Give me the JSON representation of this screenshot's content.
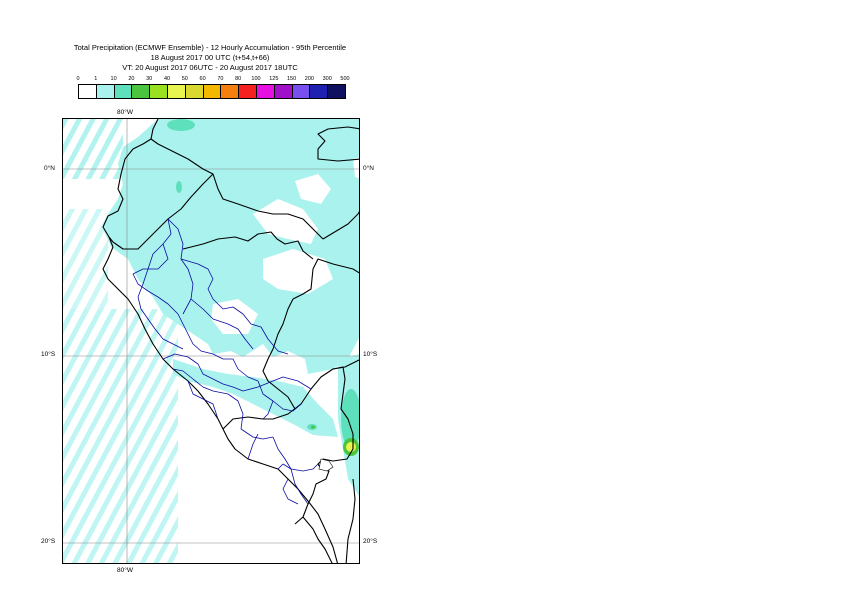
{
  "title": {
    "line1": "Total Precipitation (ECMWF Ensemble) - 12 Hourly Accumulation - 95th Percentile",
    "line2": "18 August 2017 00 UTC (t+54,t+66)",
    "line3": "VT: 20 August 2017 06UTC - 20 August 2017 18UTC"
  },
  "legend": {
    "labels": [
      "0",
      "1",
      "10",
      "20",
      "30",
      "40",
      "50",
      "60",
      "70",
      "80",
      "100",
      "125",
      "150",
      "200",
      "300",
      "500"
    ],
    "colors": [
      "#ffffff",
      "#a9f2ee",
      "#5fe0bd",
      "#4cc53e",
      "#98e020",
      "#e8f550",
      "#d8d830",
      "#f5b800",
      "#f58010",
      "#f52020",
      "#e610e0",
      "#a010c8",
      "#7850f0",
      "#2020b0",
      "#101060"
    ]
  },
  "axes": {
    "lon_top": "80°W",
    "lon_bottom": "80°W",
    "lat_left": [
      "0°N",
      "10°S",
      "20°S"
    ],
    "lat_right": [
      "0°N",
      "10°S",
      "20°S"
    ]
  }
}
